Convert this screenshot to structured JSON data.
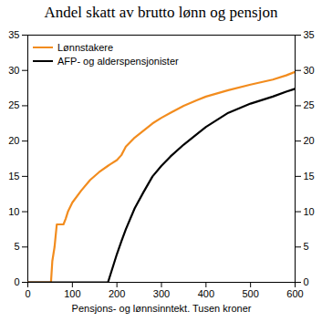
{
  "chart_data": {
    "type": "line",
    "title": "Andel skatt av brutto lønn og pensjon",
    "x_label": "Pensjons- og lønnsinntekt. Tusen kroner",
    "x": [
      0,
      52,
      55,
      60,
      65,
      80,
      85,
      90,
      100,
      120,
      140,
      160,
      180,
      185,
      200,
      210,
      220,
      240,
      260,
      280,
      300,
      320,
      350,
      380,
      400,
      450,
      500,
      550,
      580,
      600
    ],
    "series": [
      {
        "name": "Lønnstakere",
        "color": "#f28c1e",
        "values": [
          0,
          0,
          3,
          5,
          8.2,
          8.2,
          9,
          10,
          11.3,
          13,
          14.5,
          15.6,
          16.5,
          16.7,
          17.3,
          18,
          19.2,
          20.5,
          21.5,
          22.5,
          23.3,
          24,
          25,
          25.8,
          26.3,
          27.2,
          28,
          28.7,
          29.3,
          29.8
        ]
      },
      {
        "name": "AFP- og alderspensjonister",
        "color": "#000000",
        "values": [
          0,
          0,
          0,
          0,
          0,
          0,
          0,
          0,
          0,
          0,
          0,
          0,
          0,
          1,
          4,
          5.8,
          7.5,
          10.5,
          12.8,
          15,
          16.5,
          17.8,
          19.5,
          21,
          22,
          24,
          25.3,
          26.3,
          27,
          27.4
        ]
      }
    ],
    "xlim": [
      0,
      600
    ],
    "xticks": [
      0,
      100,
      200,
      300,
      400,
      500,
      600
    ],
    "ylim": [
      0,
      35
    ],
    "yticks": [
      0,
      5,
      10,
      15,
      20,
      25,
      30,
      35
    ],
    "grid": false,
    "legend": "top-left"
  }
}
